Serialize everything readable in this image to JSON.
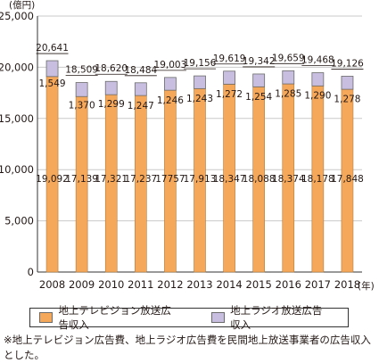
{
  "chart_data": {
    "type": "bar",
    "stacked": true,
    "unit": "(億円)",
    "x_unit": "(年)",
    "categories": [
      "2008",
      "2009",
      "2010",
      "2011",
      "2012",
      "2013",
      "2014",
      "2015",
      "2016",
      "2017",
      "2018"
    ],
    "series": [
      {
        "name": "地上テレビジョン放送広告収入",
        "color": "#f6a85a",
        "values": [
          19092,
          17139,
          17321,
          17237,
          17757,
          17913,
          18347,
          18088,
          18374,
          18178,
          17848
        ],
        "labels": [
          "19,092",
          "17,139",
          "17,321",
          "17,237",
          "17757",
          "17,913",
          "18,347",
          "18,088",
          "18,374",
          "18,178",
          "17,848"
        ]
      },
      {
        "name": "地上ラジオ放送広告収入",
        "color": "#c8bfe0",
        "values": [
          1549,
          1370,
          1299,
          1247,
          1246,
          1243,
          1272,
          1254,
          1285,
          1290,
          1278
        ],
        "labels": [
          "1,549",
          "1,370",
          "1,299",
          "1,247",
          "1,246",
          "1,243",
          "1,272",
          "1,254",
          "1,285",
          "1,290",
          "1,278"
        ]
      }
    ],
    "totals": [
      "20,641",
      "18,509",
      "18,620",
      "18,484",
      "19,003",
      "19,156",
      "19,619",
      "19,342",
      "19,659",
      "19,468",
      "19,126"
    ],
    "yticks": [
      "0",
      "5,000",
      "10,000",
      "15,000",
      "20,000",
      "25,000"
    ],
    "ylim": [
      0,
      25000
    ],
    "grid": true
  },
  "note": "※地上テレビジョン広告費、地上ラジオ広告費を民間地上放送事業者の広告収入とした。"
}
